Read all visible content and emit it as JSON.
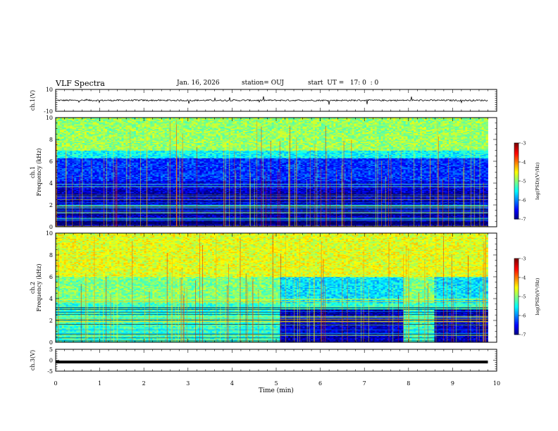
{
  "header": {
    "title": "VLF Spectra",
    "date": "Jan. 16, 2026",
    "station": "station= OUJ",
    "start": "start  UT =   17: 0  : 0"
  },
  "chart_data": [
    {
      "type": "line",
      "panel": "ch1-waveform",
      "ylabel": "ch.1(V)",
      "ylim": [
        -10,
        10
      ],
      "yticks": [
        "10",
        "-10"
      ],
      "baseline": 0,
      "color": "#000000"
    },
    {
      "type": "heatmap",
      "panel": "ch1-spectrogram",
      "ylabel_line1": "ch.1",
      "ylabel_line2": "Frequency (kHz)",
      "ylim": [
        0,
        10
      ],
      "yticks": [
        "0",
        "2",
        "4",
        "6",
        "8",
        "10"
      ],
      "colorbar": {
        "label": "log(PSD)(V²/Hz)",
        "range": [
          -7,
          -3
        ],
        "ticks": [
          "-3",
          "-4",
          "-5",
          "-6",
          "-7"
        ]
      },
      "bands": [
        {
          "from": 7.0,
          "to": 10.0,
          "level": -4.9
        },
        {
          "from": 6.3,
          "to": 7.0,
          "level": -5.5
        },
        {
          "from": 4.2,
          "to": 6.3,
          "level": -6.3
        },
        {
          "from": 3.5,
          "to": 4.2,
          "level": -6.6
        },
        {
          "from": 2.0,
          "to": 3.5,
          "level": -6.7
        },
        {
          "from": 0.0,
          "to": 2.0,
          "level": -6.8
        }
      ]
    },
    {
      "type": "heatmap",
      "panel": "ch2-spectrogram",
      "ylabel_line1": "ch.2",
      "ylabel_line2": "Frequency (kHz)",
      "ylim": [
        0,
        10
      ],
      "yticks": [
        "0",
        "2",
        "4",
        "6",
        "8",
        "10"
      ],
      "colorbar": {
        "label": "log(PSD)(V²/Hz)",
        "range": [
          -7,
          -3
        ],
        "ticks": [
          "-3",
          "-4",
          "-5",
          "-6",
          "-7"
        ]
      },
      "bands": [
        {
          "from": 6.0,
          "to": 10.0,
          "level": -4.6
        },
        {
          "from": 3.6,
          "to": 6.0,
          "level": -5.0
        },
        {
          "from": 0.0,
          "to": 3.6,
          "level": -5.3
        }
      ],
      "quiet_periods_min": [
        [
          5.1,
          7.9
        ],
        [
          8.6,
          9.8
        ]
      ],
      "quiet_bands": [
        {
          "from": 3.6,
          "to": 6.0,
          "level": -5.6
        },
        {
          "from": 0.0,
          "to": 3.0,
          "level": -6.7
        }
      ]
    },
    {
      "type": "line",
      "panel": "ch3-waveform",
      "ylabel": "ch.3(V)",
      "ylim": [
        -5,
        5
      ],
      "yticks": [
        "5",
        "0",
        "-5"
      ],
      "value": -0.8,
      "xlabel": "Time (min)",
      "xlim": [
        0,
        10
      ],
      "xticks": [
        "0",
        "1",
        "2",
        "3",
        "4",
        "5",
        "6",
        "7",
        "8",
        "9",
        "10"
      ],
      "data_end_min": 9.8
    }
  ]
}
